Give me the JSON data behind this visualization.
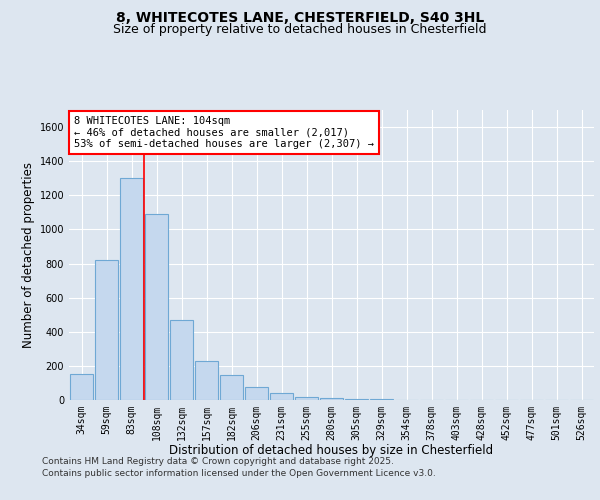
{
  "title_line1": "8, WHITECOTES LANE, CHESTERFIELD, S40 3HL",
  "title_line2": "Size of property relative to detached houses in Chesterfield",
  "xlabel": "Distribution of detached houses by size in Chesterfield",
  "ylabel": "Number of detached properties",
  "categories": [
    "34sqm",
    "59sqm",
    "83sqm",
    "108sqm",
    "132sqm",
    "157sqm",
    "182sqm",
    "206sqm",
    "231sqm",
    "255sqm",
    "280sqm",
    "305sqm",
    "329sqm",
    "354sqm",
    "378sqm",
    "403sqm",
    "428sqm",
    "452sqm",
    "477sqm",
    "501sqm",
    "526sqm"
  ],
  "values": [
    152,
    820,
    1300,
    1090,
    470,
    230,
    148,
    75,
    40,
    20,
    12,
    5,
    5,
    2,
    2,
    2,
    2,
    1,
    0,
    0,
    0
  ],
  "bar_color": "#c5d8ee",
  "bar_edge_color": "#6fa8d4",
  "vline_color": "red",
  "vline_x_index": 2.5,
  "annotation_text": "8 WHITECOTES LANE: 104sqm\n← 46% of detached houses are smaller (2,017)\n53% of semi-detached houses are larger (2,307) →",
  "annotation_box_facecolor": "white",
  "annotation_box_edgecolor": "red",
  "ylim": [
    0,
    1700
  ],
  "yticks": [
    0,
    200,
    400,
    600,
    800,
    1000,
    1200,
    1400,
    1600
  ],
  "background_color": "#dde6f0",
  "plot_background_color": "#dde6f0",
  "grid_color": "white",
  "footer_line1": "Contains HM Land Registry data © Crown copyright and database right 2025.",
  "footer_line2": "Contains public sector information licensed under the Open Government Licence v3.0.",
  "title_fontsize": 10,
  "subtitle_fontsize": 9,
  "axis_label_fontsize": 8.5,
  "tick_fontsize": 7,
  "annotation_fontsize": 7.5,
  "footer_fontsize": 6.5
}
